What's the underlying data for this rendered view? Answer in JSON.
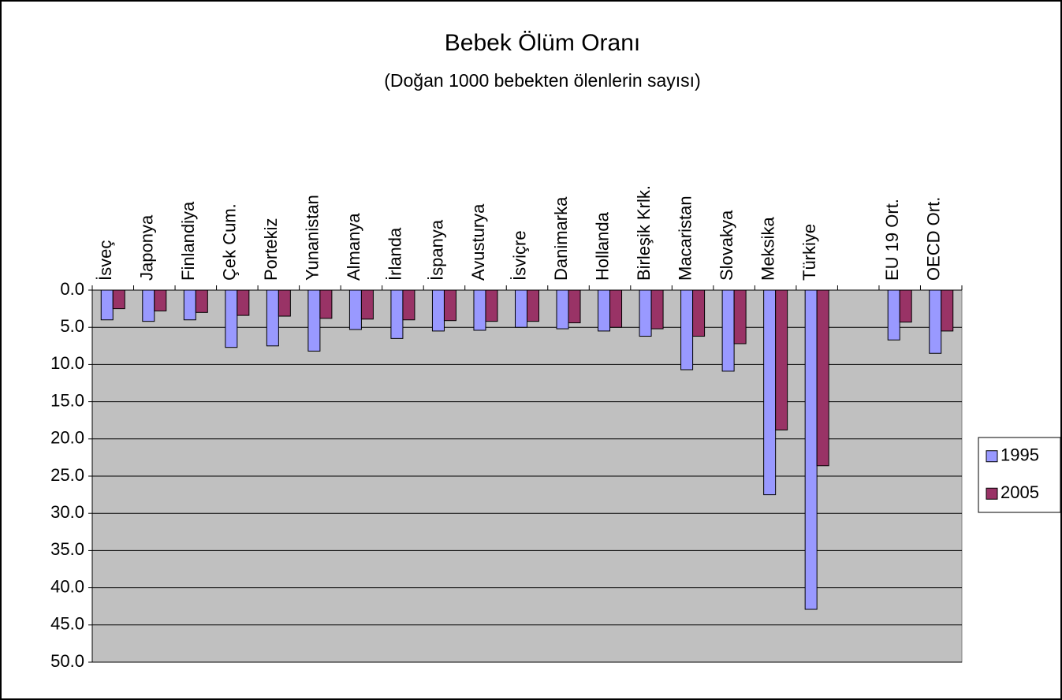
{
  "chart_data": {
    "type": "bar",
    "title": "Bebek Ölüm Oranı",
    "subtitle": "(Doğan 1000 bebekten ölenlerin sayısı)",
    "categories": [
      "İsveç",
      "Japonya",
      "Finlandiya",
      "Çek Cum.",
      "Portekiz",
      "Yunanistan",
      "Almanya",
      "İrlanda",
      "İspanya",
      "Avusturya",
      "İsviçre",
      "Danimarka",
      "Hollanda",
      "Birleşik Krlk.",
      "Macaristan",
      "Slovakya",
      "Meksika",
      "Türkiye",
      null,
      "EU 19 Ort.",
      "OECD Ort."
    ],
    "series": [
      {
        "name": "1995",
        "color": "#9999ff",
        "values": [
          4.0,
          4.2,
          4.0,
          7.7,
          7.5,
          8.2,
          5.3,
          6.5,
          5.5,
          5.4,
          5.0,
          5.2,
          5.5,
          6.2,
          10.7,
          10.9,
          27.5,
          42.9,
          null,
          6.7,
          8.5
        ]
      },
      {
        "name": "2005",
        "color": "#993366",
        "values": [
          2.5,
          2.8,
          3.0,
          3.4,
          3.5,
          3.8,
          3.9,
          4.0,
          4.1,
          4.2,
          4.2,
          4.4,
          5.0,
          5.2,
          6.2,
          7.2,
          18.8,
          23.6,
          null,
          4.3,
          5.5
        ]
      }
    ],
    "ylim": [
      0,
      50
    ],
    "y_reversed": true,
    "yticks": [
      {
        "value": 0,
        "label": "0.0"
      },
      {
        "value": 5,
        "label": "5.0"
      },
      {
        "value": 10,
        "label": "10.0"
      },
      {
        "value": 15,
        "label": "15.0"
      },
      {
        "value": 20,
        "label": "20.0"
      },
      {
        "value": 25,
        "label": "25.0"
      },
      {
        "value": 30,
        "label": "30.0"
      },
      {
        "value": 35,
        "label": "35.0"
      },
      {
        "value": 40,
        "label": "40.0"
      },
      {
        "value": 45,
        "label": "45.0"
      },
      {
        "value": 50,
        "label": "50.0"
      }
    ],
    "grid": true,
    "legend": "right",
    "plot_background": "#c0c0c0"
  }
}
